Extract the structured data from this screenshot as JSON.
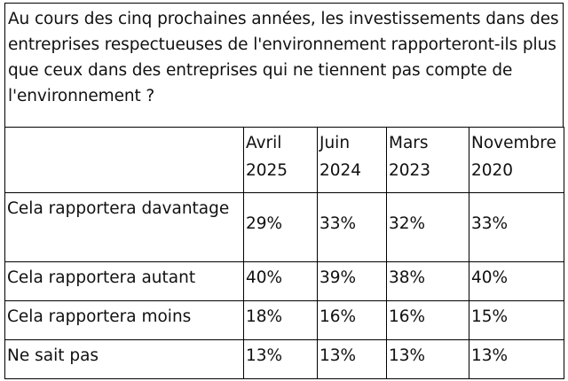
{
  "question": "Au cours des cinq prochaines années, les investissements dans des entreprises respectueuses de l'environnement rapporteront-ils plus que ceux dans des entreprises qui ne tiennent pas compte de l'environnement ?",
  "table": {
    "columns": [
      "",
      "Avril 2025",
      "Juin 2024",
      "Mars 2023",
      "Novembre 2020"
    ],
    "rows": [
      {
        "label": "Cela rapportera davantage",
        "values": [
          "29%",
          "33%",
          "32%",
          "33%"
        ]
      },
      {
        "label": "Cela rapportera autant",
        "values": [
          "40%",
          "39%",
          "38%",
          "40%"
        ]
      },
      {
        "label": "Cela rapportera moins",
        "values": [
          "18%",
          "16%",
          "16%",
          "15%"
        ]
      },
      {
        "label": "Ne sait pas",
        "values": [
          "13%",
          "13%",
          "13%",
          "13%"
        ]
      }
    ]
  }
}
